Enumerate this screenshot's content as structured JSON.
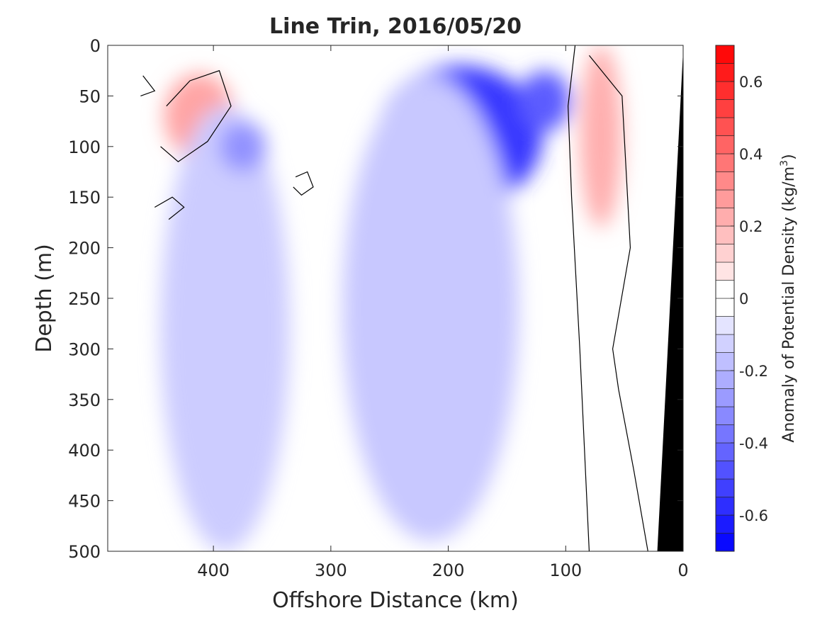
{
  "chart_data": {
    "type": "heatmap",
    "title": "Line Trin, 2016/05/20",
    "xlabel": "Offshore Distance (km)",
    "ylabel": "Depth (m)",
    "xlim": [
      490,
      0
    ],
    "ylim": [
      500,
      0
    ],
    "xticks": [
      400,
      300,
      200,
      100,
      0
    ],
    "yticks": [
      0,
      50,
      100,
      150,
      200,
      250,
      300,
      350,
      400,
      450,
      500
    ],
    "colorbar": {
      "label": "Anomaly of Potential Density (kg/m³)",
      "label_main": "Anomaly of Potential Density (kg/m",
      "label_sup": "3",
      "label_end": ")",
      "range": [
        -0.7,
        0.7
      ],
      "step": 0.05,
      "ticks": [
        -0.6,
        -0.4,
        -0.2,
        0,
        0.2,
        0.4,
        0.6
      ],
      "tick_labels": [
        "-0.6",
        "-0.4",
        "-0.2",
        "0",
        "0.2",
        "0.4",
        "0.6"
      ],
      "negative_color": "#0000ff",
      "positive_color": "#ff0000",
      "neutral_color": "#ffffff"
    },
    "data_extent": {
      "x_start": 470,
      "x_end": 22
    },
    "features": [
      {
        "kind": "anomaly",
        "name": "surface-warm-core-north",
        "x": 412,
        "depth": 70,
        "value": 0.25,
        "rx": 30,
        "ry": 42
      },
      {
        "kind": "anomaly",
        "name": "nearshore-dense-lens",
        "x": 70,
        "depth": 90,
        "value": 0.22,
        "rx": 18,
        "ry": 90
      },
      {
        "kind": "anomaly",
        "name": "offshore-light-plume",
        "x": 390,
        "depth": 280,
        "value": -0.14,
        "rx": 55,
        "ry": 220
      },
      {
        "kind": "anomaly",
        "name": "central-light-core",
        "x": 190,
        "depth": 90,
        "value": -0.55,
        "rx": 70,
        "ry": 70
      },
      {
        "kind": "anomaly",
        "name": "central-light-plume",
        "x": 215,
        "depth": 260,
        "value": -0.15,
        "rx": 75,
        "ry": 230
      },
      {
        "kind": "anomaly",
        "name": "light-tongue-west",
        "x": 375,
        "depth": 100,
        "value": -0.3,
        "rx": 20,
        "ry": 25
      },
      {
        "kind": "anomaly",
        "name": "light-core-east",
        "x": 118,
        "depth": 55,
        "value": -0.45,
        "rx": 22,
        "ry": 30
      }
    ],
    "bathymetry": {
      "color": "#000000",
      "points": [
        [
          0,
          5
        ],
        [
          22,
          500
        ],
        [
          0,
          500
        ]
      ]
    },
    "zero_contours": [
      [
        [
          92,
          0
        ],
        [
          98,
          60
        ],
        [
          95,
          150
        ],
        [
          88,
          300
        ],
        [
          80,
          500
        ]
      ],
      [
        [
          80,
          10
        ],
        [
          52,
          50
        ],
        [
          45,
          200
        ],
        [
          60,
          300
        ],
        [
          55,
          340
        ],
        [
          42,
          420
        ],
        [
          30,
          500
        ]
      ],
      [
        [
          440,
          60
        ],
        [
          420,
          35
        ],
        [
          395,
          25
        ],
        [
          385,
          60
        ],
        [
          405,
          95
        ],
        [
          430,
          115
        ],
        [
          445,
          100
        ]
      ],
      [
        [
          330,
          130
        ],
        [
          320,
          125
        ],
        [
          315,
          140
        ],
        [
          325,
          148
        ],
        [
          332,
          140
        ]
      ],
      [
        [
          450,
          160
        ],
        [
          435,
          150
        ],
        [
          425,
          160
        ],
        [
          438,
          172
        ]
      ],
      [
        [
          460,
          30
        ],
        [
          450,
          45
        ],
        [
          462,
          50
        ]
      ]
    ]
  }
}
